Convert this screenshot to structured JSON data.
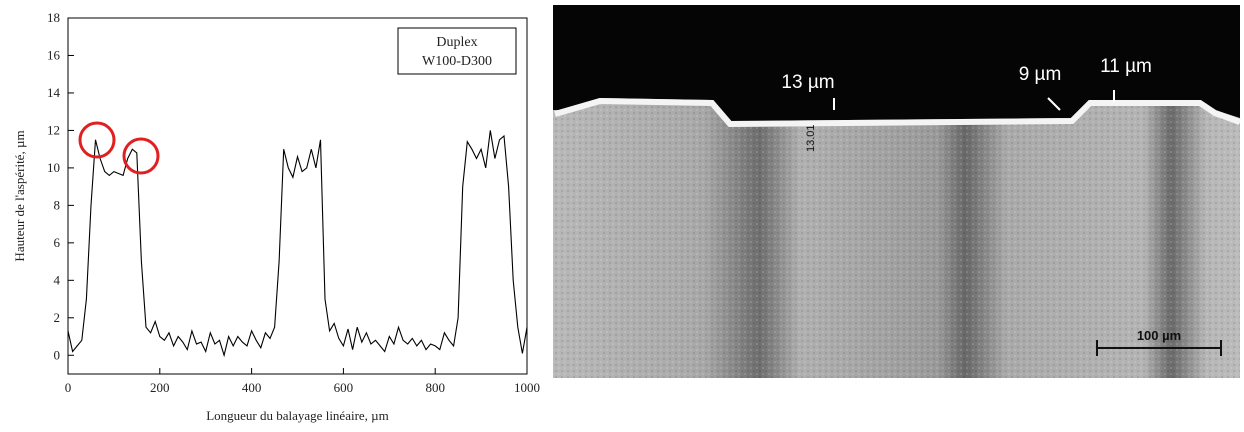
{
  "chart_data": {
    "type": "line",
    "x_label": "Longueur du balayage linéaire, µm",
    "y_label": "Hauteur de l'aspérité, µm",
    "annotation": [
      "Duplex",
      "W100-D300"
    ],
    "color": "#000000",
    "xlim": [
      0,
      1000
    ],
    "ylim": [
      -1,
      18
    ],
    "xticks": [
      0,
      200,
      400,
      600,
      800,
      1000
    ],
    "yticks": [
      0,
      2,
      4,
      6,
      8,
      10,
      12,
      14,
      16,
      18
    ],
    "x": [
      0,
      10,
      20,
      30,
      40,
      50,
      60,
      70,
      80,
      90,
      100,
      110,
      120,
      130,
      140,
      150,
      160,
      170,
      180,
      190,
      200,
      210,
      220,
      230,
      240,
      250,
      260,
      270,
      280,
      290,
      300,
      310,
      320,
      330,
      340,
      350,
      360,
      370,
      380,
      390,
      400,
      410,
      420,
      430,
      440,
      450,
      460,
      470,
      480,
      490,
      500,
      510,
      520,
      530,
      540,
      550,
      560,
      570,
      580,
      590,
      600,
      610,
      620,
      630,
      640,
      650,
      660,
      670,
      680,
      690,
      700,
      710,
      720,
      730,
      740,
      750,
      760,
      770,
      780,
      790,
      800,
      810,
      820,
      830,
      840,
      850,
      860,
      870,
      880,
      890,
      900,
      910,
      920,
      930,
      940,
      950,
      960,
      970,
      980,
      990,
      1000
    ],
    "values": [
      1.3,
      0.2,
      0.5,
      0.8,
      3,
      8,
      11.5,
      10.5,
      9.8,
      9.6,
      9.8,
      9.7,
      9.6,
      10.5,
      11,
      10.8,
      5,
      1.5,
      1.2,
      1.8,
      1,
      0.8,
      1.2,
      0.5,
      1,
      0.7,
      0.3,
      1.3,
      0.6,
      0.7,
      0.2,
      1.2,
      0.6,
      0.8,
      0,
      1,
      0.5,
      1,
      0.7,
      0.5,
      1.3,
      0.8,
      0.4,
      1.2,
      0.9,
      1.5,
      5,
      11,
      10,
      9.5,
      10.6,
      9.8,
      10,
      11,
      10,
      11.5,
      3,
      1.3,
      1.7,
      0.9,
      0.5,
      1.4,
      0.3,
      1.5,
      0.7,
      1.2,
      0.6,
      0.8,
      0.5,
      0.2,
      1,
      0.6,
      1.5,
      0.8,
      0.6,
      0.9,
      0.5,
      0.8,
      0.3,
      0.6,
      0.5,
      0.3,
      1.2,
      0.8,
      0.5,
      2,
      9,
      11.4,
      11,
      10.5,
      11,
      10,
      12,
      10.5,
      11.5,
      11.7,
      9,
      4,
      1.5,
      0.1,
      1.5
    ]
  },
  "micrograph": {
    "labels": [
      "13 µm",
      "9 µm",
      "11 µm"
    ],
    "measure": "13.01",
    "scale_bar": "100 µm"
  }
}
